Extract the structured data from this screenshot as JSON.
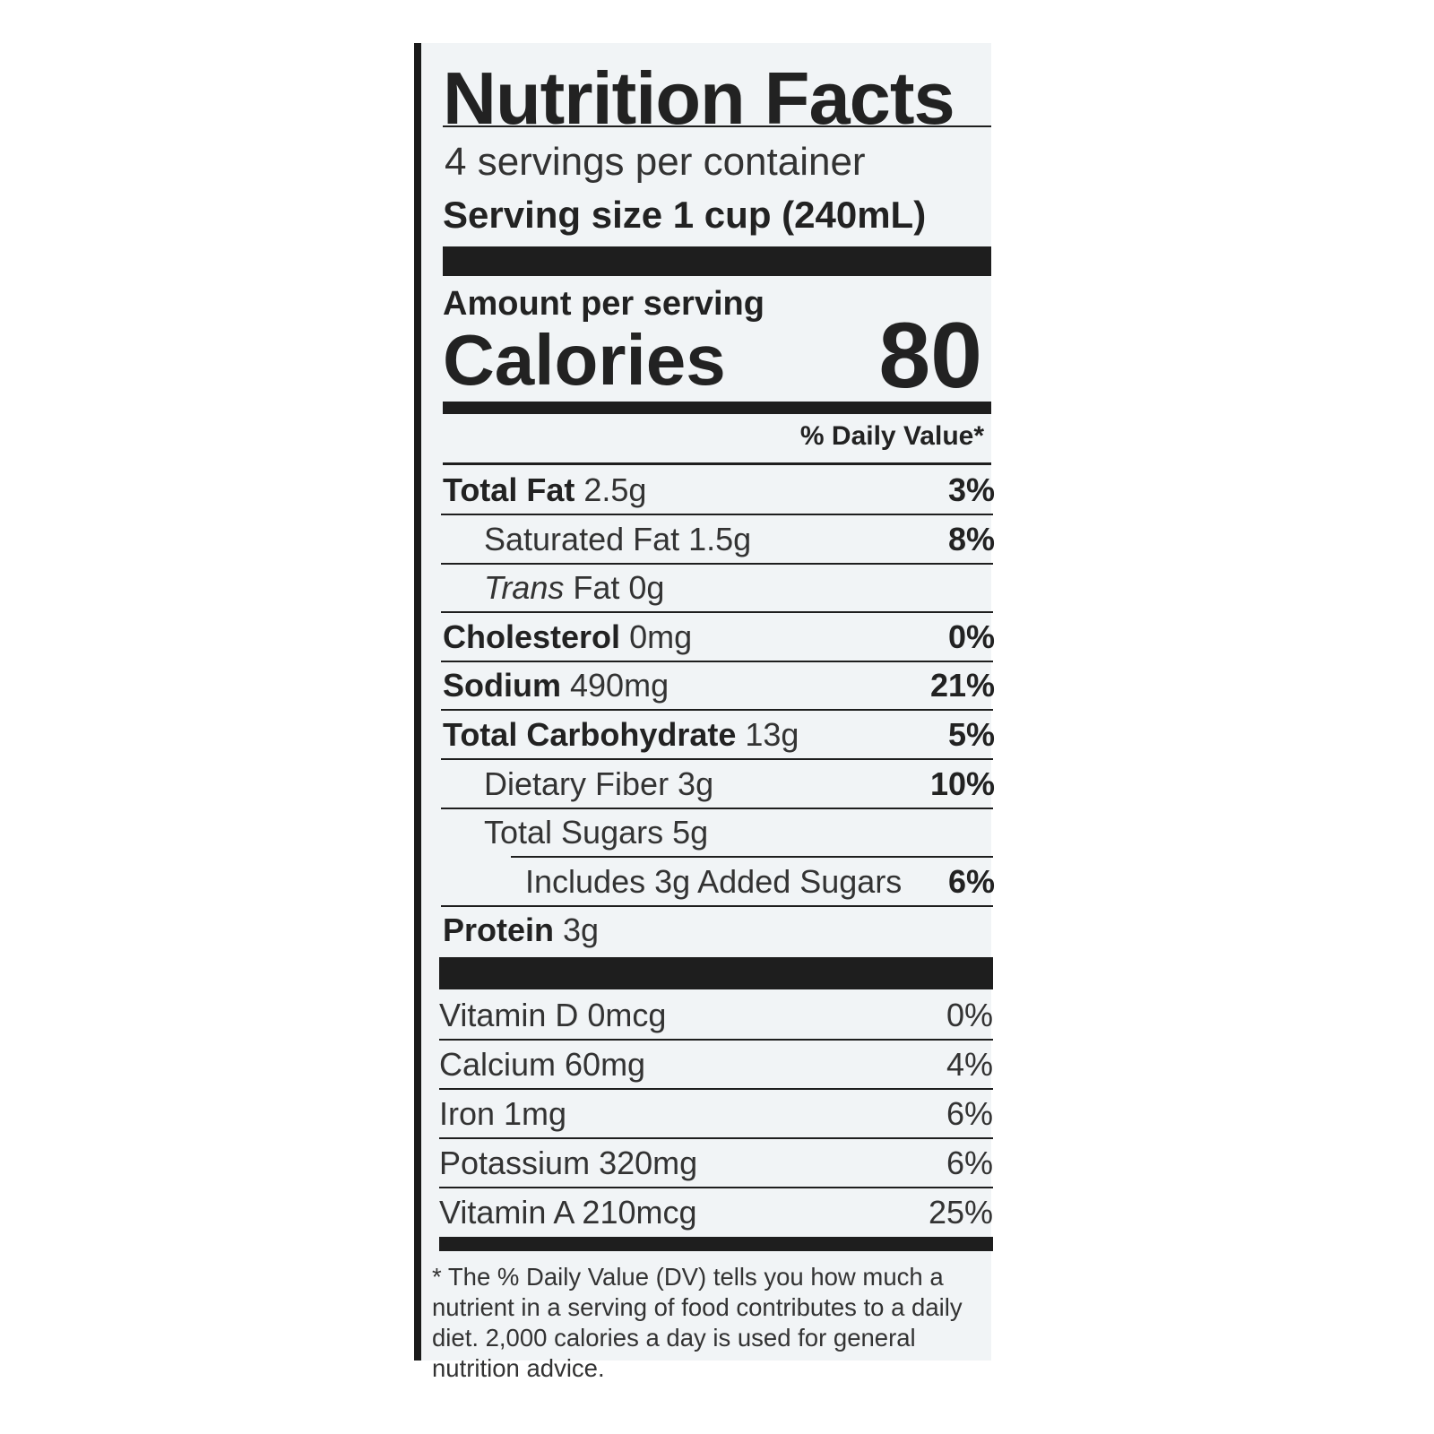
{
  "header": {
    "title": "Nutrition Facts",
    "servings": "4 servings per container",
    "serving_size_label": "Serving size",
    "serving_size": "1 cup (240mL)"
  },
  "calories": {
    "heading": "Amount per serving",
    "label": "Calories",
    "value": "80"
  },
  "daily_value_heading": "% Daily Value*",
  "nutrients": [
    {
      "name": "Total Fat",
      "amount": "2.5g",
      "dv": "3%"
    },
    {
      "name": "Saturated Fat 1.5g",
      "dv": "8%"
    },
    {
      "italic": "Trans",
      "name": "Fat 0g"
    },
    {
      "name": "Cholesterol",
      "amount": "0mg",
      "dv": "0%"
    },
    {
      "name": "Sodium",
      "amount": "490mg",
      "dv": "21%"
    },
    {
      "name": "Total Carbohydrate",
      "amount": "13g",
      "dv": "5%"
    },
    {
      "name": "Dietary Fiber 3g",
      "dv": "10%"
    },
    {
      "name": "Total Sugars 5g"
    },
    {
      "name": "Includes 3g Added Sugars",
      "dv": "6%"
    },
    {
      "name": "Protein",
      "amount": "3g"
    }
  ],
  "vitamins": [
    {
      "name": "Vitamin D 0mcg",
      "dv": "0%"
    },
    {
      "name": "Calcium 60mg",
      "dv": "4%"
    },
    {
      "name": "Iron 1mg",
      "dv": "6%"
    },
    {
      "name": "Potassium 320mg",
      "dv": "6%"
    },
    {
      "name": "Vitamin A 210mcg",
      "dv": "25%"
    }
  ],
  "footnote": "* The % Daily Value (DV) tells you how much a nutrient in a serving of food contributes to a daily diet. 2,000 calories a day is used for general nutrition advice."
}
